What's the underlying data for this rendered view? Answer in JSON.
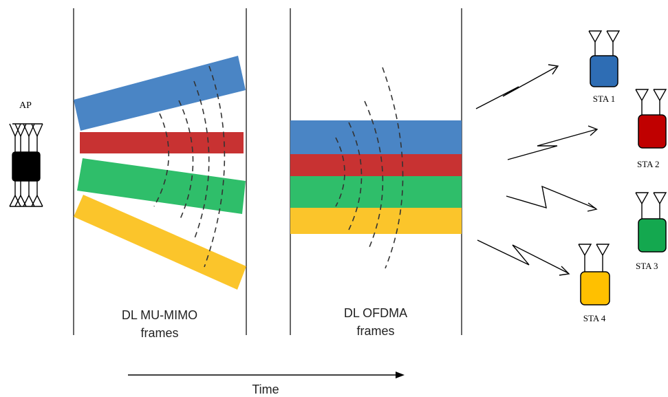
{
  "diagram": {
    "ap_label": "AP",
    "mumimo_caption": {
      "line1": "DL MU-MIMO",
      "line2": "frames"
    },
    "ofdma_caption": {
      "line1": "DL OFDMA",
      "line2": "frames"
    },
    "time_label": "Time",
    "stations": [
      {
        "label": "STA 1",
        "color": "#2E6DB4"
      },
      {
        "label": "STA 2",
        "color": "#C00000"
      },
      {
        "label": "STA 3",
        "color": "#14A84F"
      },
      {
        "label": "STA 4",
        "color": "#FFC000"
      }
    ],
    "colors": {
      "blue": "#4A85C5",
      "red": "#C83232",
      "green": "#2FBE6A",
      "yellow": "#FBC52B",
      "ap_body": "#000000"
    }
  }
}
